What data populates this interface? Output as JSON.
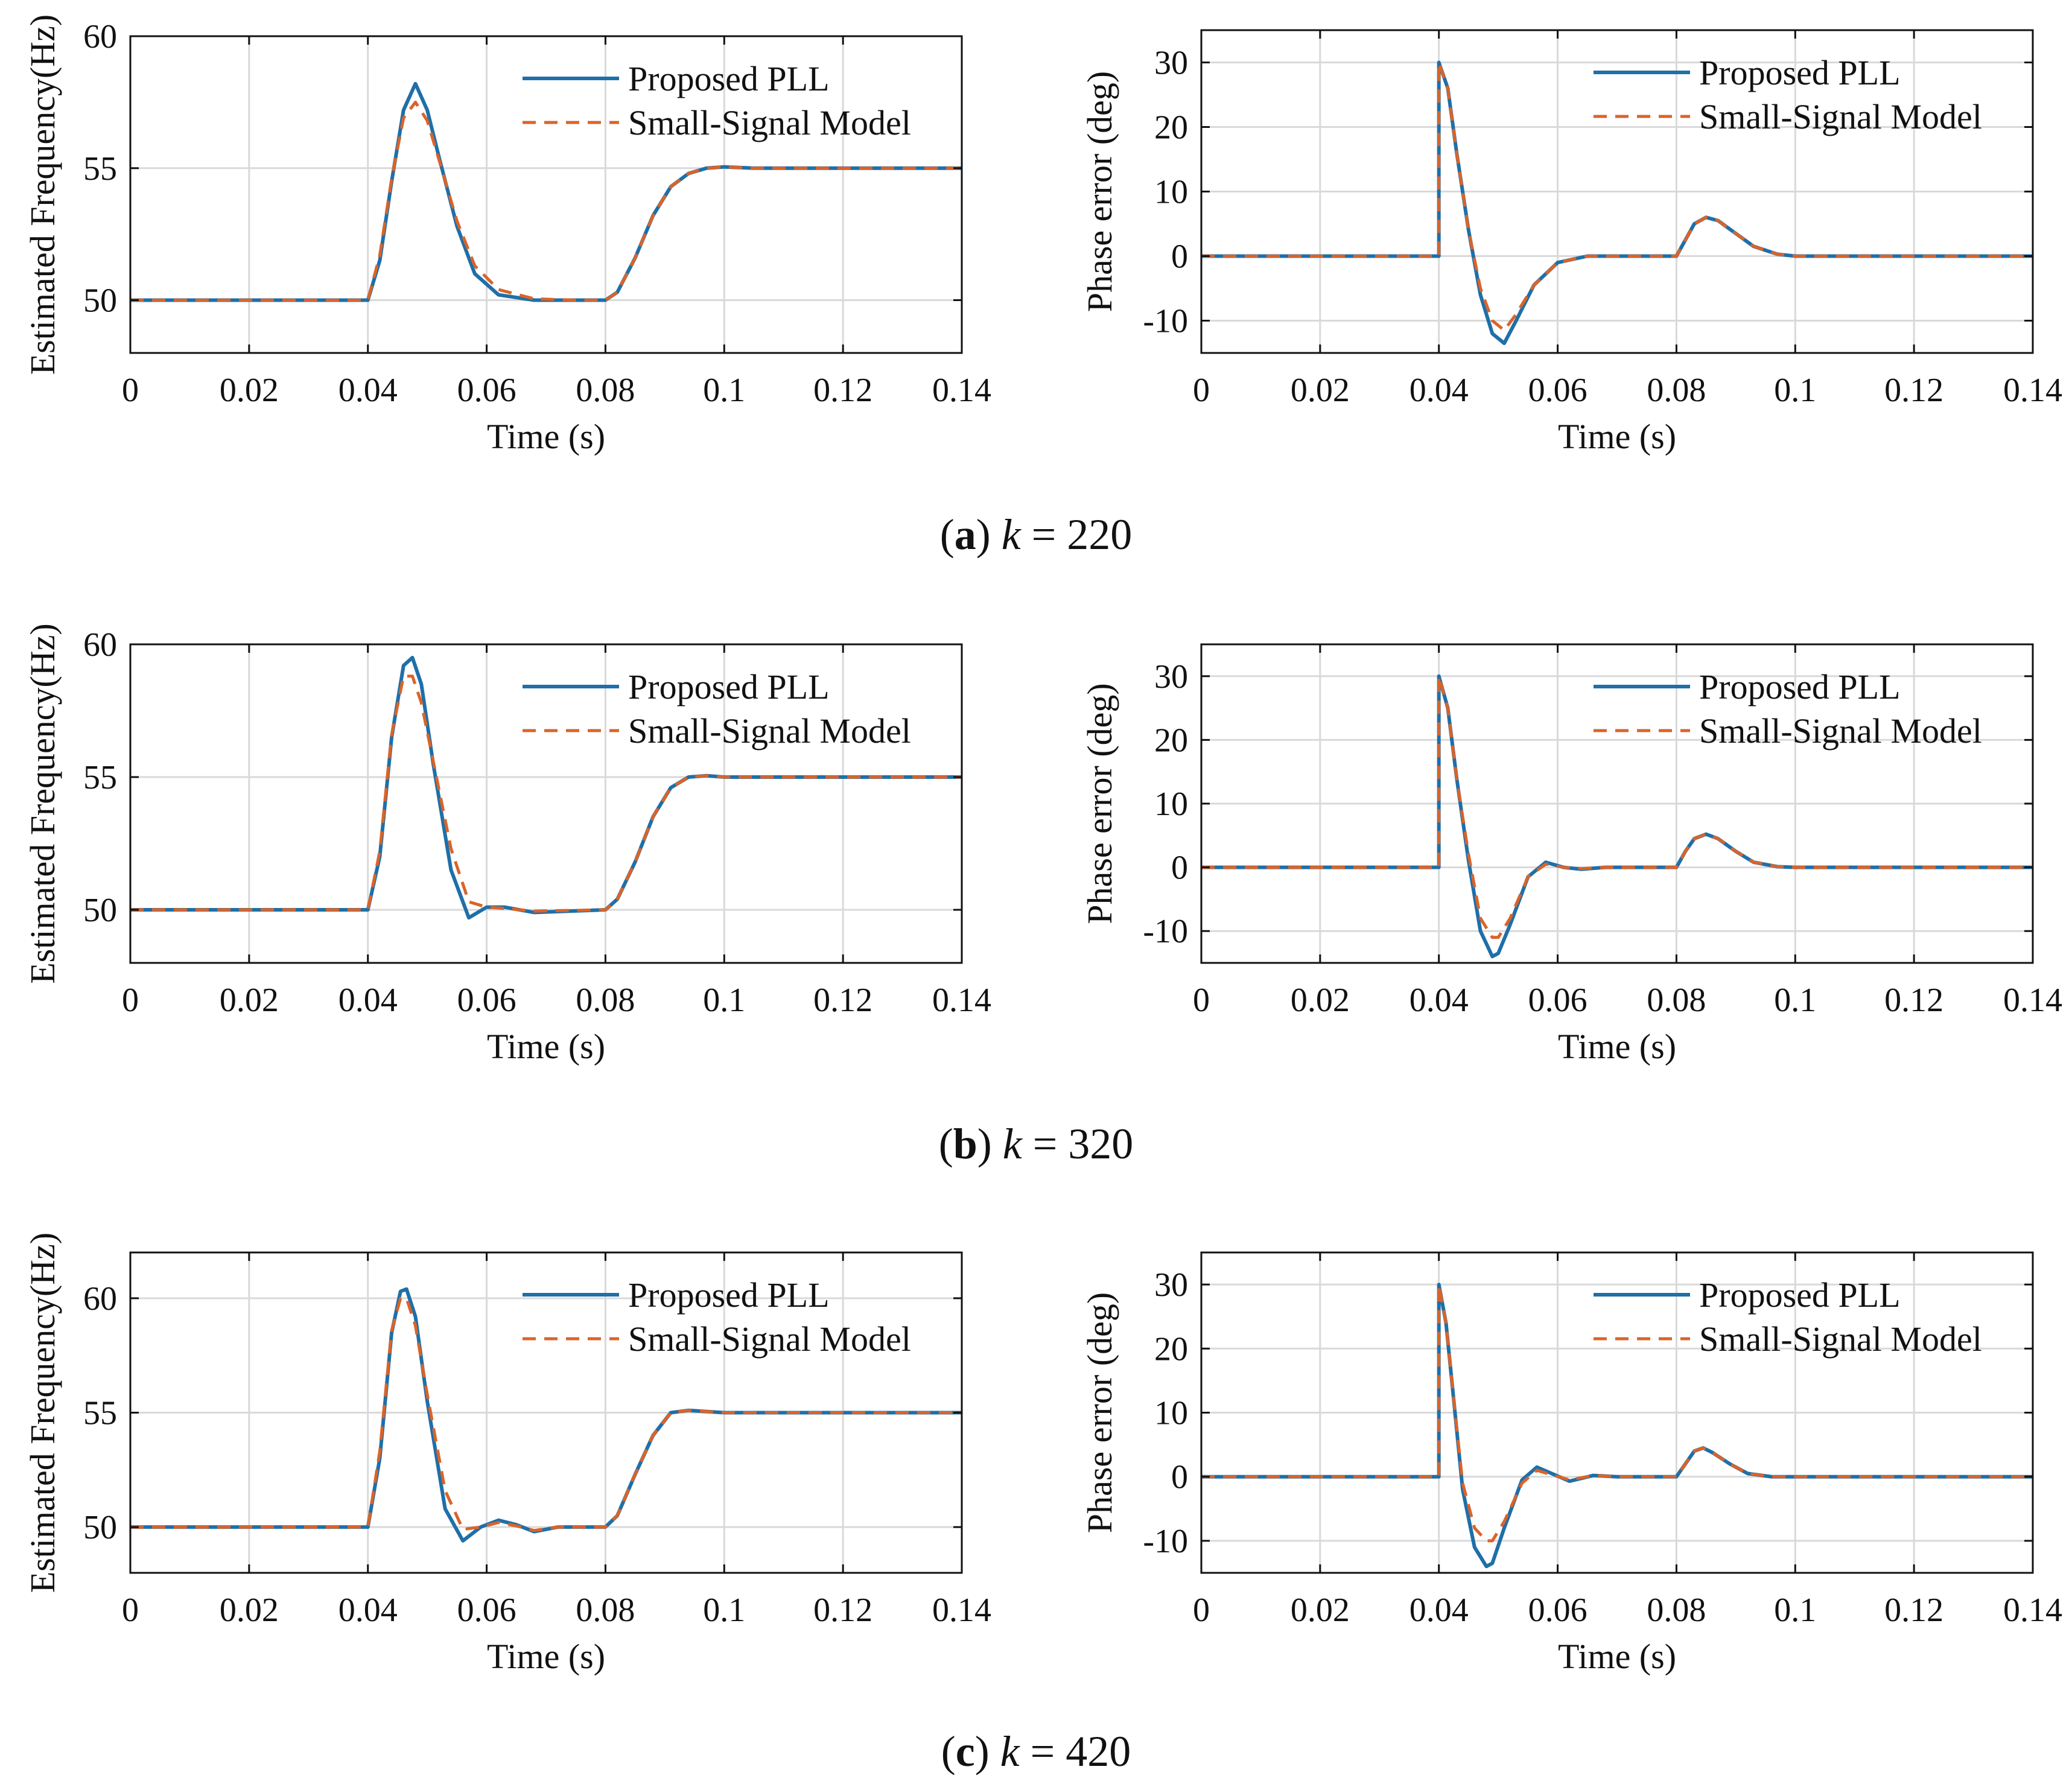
{
  "figure": {
    "captions": [
      {
        "letter": "a",
        "paren_open": "(",
        "paren_close": ")",
        "var": "k",
        "eq": " = ",
        "value": "220"
      },
      {
        "letter": "b",
        "paren_open": "(",
        "paren_close": ")",
        "var": "k",
        "eq": " = ",
        "value": "320"
      },
      {
        "letter": "c",
        "paren_open": "(",
        "paren_close": ")",
        "var": "k",
        "eq": " = ",
        "value": "420"
      }
    ]
  },
  "colors": {
    "pll": "#1f6fa8",
    "model": "#d9642a",
    "axis": "#111111",
    "grid": "#d9d9d9",
    "text": "#111111"
  },
  "chart_data": [
    {
      "type": "line",
      "panel": "a-freq",
      "xlabel": "Time (s)",
      "ylabel": "Estimated Frequency(Hz)",
      "xlim": [
        0,
        0.14
      ],
      "ylim": [
        48,
        60
      ],
      "xticks": [
        0,
        0.02,
        0.04,
        0.06,
        0.08,
        0.1,
        0.12,
        0.14
      ],
      "xtick_labels": [
        "0",
        "0.02",
        "0.04",
        "0.06",
        "0.08",
        "0.1",
        "0.12",
        "0.14"
      ],
      "yticks": [
        50,
        55,
        60
      ],
      "ytick_labels": [
        "50",
        "55",
        "60"
      ],
      "legend": [
        "Proposed PLL",
        "Small-Signal Model"
      ],
      "legend_position": "top-right",
      "series": [
        {
          "name": "Proposed PLL",
          "style": "solid",
          "x": [
            0,
            0.04,
            0.042,
            0.044,
            0.046,
            0.048,
            0.05,
            0.052,
            0.055,
            0.058,
            0.062,
            0.068,
            0.075,
            0.08,
            0.082,
            0.085,
            0.088,
            0.091,
            0.094,
            0.097,
            0.1,
            0.105,
            0.14
          ],
          "y": [
            50,
            50,
            51.5,
            54.5,
            57.2,
            58.2,
            57.2,
            55.4,
            52.8,
            51,
            50.2,
            50,
            50,
            50,
            50.3,
            51.6,
            53.2,
            54.3,
            54.8,
            55,
            55.05,
            55,
            55
          ]
        },
        {
          "name": "Small-Signal Model",
          "style": "dashed",
          "x": [
            0,
            0.04,
            0.042,
            0.044,
            0.046,
            0.048,
            0.05,
            0.052,
            0.055,
            0.058,
            0.062,
            0.068,
            0.075,
            0.08,
            0.082,
            0.085,
            0.088,
            0.091,
            0.094,
            0.097,
            0.1,
            0.105,
            0.14
          ],
          "y": [
            50,
            50,
            51.7,
            54.6,
            56.9,
            57.5,
            56.8,
            55.3,
            53,
            51.3,
            50.4,
            50.05,
            50,
            50,
            50.3,
            51.6,
            53.2,
            54.3,
            54.8,
            55,
            55.05,
            55,
            55
          ]
        }
      ]
    },
    {
      "type": "line",
      "panel": "a-phase",
      "xlabel": "Time (s)",
      "ylabel": "Phase error (deg)",
      "xlim": [
        0,
        0.14
      ],
      "ylim": [
        -15,
        35
      ],
      "xticks": [
        0,
        0.02,
        0.04,
        0.06,
        0.08,
        0.1,
        0.12,
        0.14
      ],
      "xtick_labels": [
        "0",
        "0.02",
        "0.04",
        "0.06",
        "0.08",
        "0.1",
        "0.12",
        "0.14"
      ],
      "yticks": [
        -10,
        0,
        10,
        20,
        30
      ],
      "ytick_labels": [
        "-10",
        "0",
        "10",
        "20",
        "30"
      ],
      "legend": [
        "Proposed PLL",
        "Small-Signal Model"
      ],
      "legend_position": "top-right",
      "series": [
        {
          "name": "Proposed PLL",
          "style": "solid",
          "x": [
            0,
            0.04,
            0.04,
            0.0415,
            0.043,
            0.045,
            0.047,
            0.049,
            0.051,
            0.053,
            0.056,
            0.06,
            0.065,
            0.08,
            0.0815,
            0.083,
            0.085,
            0.087,
            0.09,
            0.093,
            0.097,
            0.1,
            0.14
          ],
          "y": [
            0,
            0,
            30,
            26,
            16,
            4,
            -6,
            -12,
            -13.5,
            -10,
            -4.5,
            -1,
            0,
            0,
            2.5,
            5,
            6,
            5.5,
            3.5,
            1.5,
            0.3,
            0,
            0
          ]
        },
        {
          "name": "Small-Signal Model",
          "style": "dashed",
          "x": [
            0,
            0.04,
            0.04,
            0.0415,
            0.043,
            0.045,
            0.047,
            0.049,
            0.051,
            0.053,
            0.056,
            0.06,
            0.065,
            0.08,
            0.0815,
            0.083,
            0.085,
            0.087,
            0.09,
            0.093,
            0.097,
            0.1,
            0.14
          ],
          "y": [
            0,
            0,
            30,
            26,
            16,
            4,
            -5,
            -10,
            -11.5,
            -9,
            -4.5,
            -1,
            0,
            0,
            2.5,
            5,
            6,
            5.5,
            3.5,
            1.5,
            0.3,
            0,
            0
          ]
        }
      ]
    },
    {
      "type": "line",
      "panel": "b-freq",
      "xlabel": "Time (s)",
      "ylabel": "Estimated Frequency(Hz)",
      "xlim": [
        0,
        0.14
      ],
      "ylim": [
        48,
        60
      ],
      "xticks": [
        0,
        0.02,
        0.04,
        0.06,
        0.08,
        0.1,
        0.12,
        0.14
      ],
      "xtick_labels": [
        "0",
        "0.02",
        "0.04",
        "0.06",
        "0.08",
        "0.1",
        "0.12",
        "0.14"
      ],
      "yticks": [
        50,
        55,
        60
      ],
      "ytick_labels": [
        "50",
        "55",
        "60"
      ],
      "legend": [
        "Proposed PLL",
        "Small-Signal Model"
      ],
      "legend_position": "top-right",
      "series": [
        {
          "name": "Proposed PLL",
          "style": "solid",
          "x": [
            0,
            0.04,
            0.042,
            0.044,
            0.046,
            0.0475,
            0.049,
            0.051,
            0.054,
            0.057,
            0.06,
            0.063,
            0.068,
            0.08,
            0.082,
            0.085,
            0.088,
            0.091,
            0.094,
            0.097,
            0.1,
            0.14
          ],
          "y": [
            50,
            50,
            52,
            56.5,
            59.2,
            59.5,
            58.5,
            55.5,
            51.5,
            49.7,
            50.1,
            50.1,
            49.9,
            50,
            50.4,
            51.8,
            53.5,
            54.6,
            55,
            55.05,
            55,
            55
          ]
        },
        {
          "name": "Small-Signal Model",
          "style": "dashed",
          "x": [
            0,
            0.04,
            0.042,
            0.044,
            0.046,
            0.0475,
            0.049,
            0.051,
            0.054,
            0.057,
            0.06,
            0.063,
            0.068,
            0.08,
            0.082,
            0.085,
            0.088,
            0.091,
            0.094,
            0.097,
            0.1,
            0.14
          ],
          "y": [
            50,
            50,
            52.2,
            56.6,
            58.8,
            58.8,
            57.8,
            55.6,
            52.3,
            50.3,
            50.1,
            50.05,
            49.95,
            50,
            50.4,
            51.8,
            53.5,
            54.6,
            55,
            55.05,
            55,
            55
          ]
        }
      ]
    },
    {
      "type": "line",
      "panel": "b-phase",
      "xlabel": "Time (s)",
      "ylabel": "Phase error (deg)",
      "xlim": [
        0,
        0.14
      ],
      "ylim": [
        -15,
        35
      ],
      "xticks": [
        0,
        0.02,
        0.04,
        0.06,
        0.08,
        0.1,
        0.12,
        0.14
      ],
      "xtick_labels": [
        "0",
        "0.02",
        "0.04",
        "0.06",
        "0.08",
        "0.1",
        "0.12",
        "0.14"
      ],
      "yticks": [
        -10,
        0,
        10,
        20,
        30
      ],
      "ytick_labels": [
        "-10",
        "0",
        "10",
        "20",
        "30"
      ],
      "legend": [
        "Proposed PLL",
        "Small-Signal Model"
      ],
      "legend_position": "top-right",
      "series": [
        {
          "name": "Proposed PLL",
          "style": "solid",
          "x": [
            0,
            0.04,
            0.04,
            0.0415,
            0.043,
            0.045,
            0.047,
            0.049,
            0.05,
            0.052,
            0.055,
            0.058,
            0.061,
            0.064,
            0.068,
            0.08,
            0.0815,
            0.083,
            0.085,
            0.087,
            0.09,
            0.093,
            0.097,
            0.1,
            0.14
          ],
          "y": [
            0,
            0,
            30,
            25,
            14,
            1,
            -10,
            -14,
            -13.5,
            -9,
            -1.5,
            0.8,
            0,
            -0.3,
            0,
            0,
            2.5,
            4.5,
            5.2,
            4.5,
            2.5,
            0.8,
            0.1,
            0,
            0
          ]
        },
        {
          "name": "Small-Signal Model",
          "style": "dashed",
          "x": [
            0,
            0.04,
            0.04,
            0.0415,
            0.043,
            0.045,
            0.047,
            0.049,
            0.05,
            0.052,
            0.055,
            0.058,
            0.061,
            0.064,
            0.068,
            0.08,
            0.0815,
            0.083,
            0.085,
            0.087,
            0.09,
            0.093,
            0.097,
            0.1,
            0.14
          ],
          "y": [
            0,
            0,
            30,
            25,
            14,
            2,
            -8,
            -11,
            -11,
            -8,
            -1.5,
            0.5,
            0,
            -0.2,
            0,
            0,
            2.5,
            4.5,
            5.2,
            4.5,
            2.5,
            0.8,
            0.1,
            0,
            0
          ]
        }
      ]
    },
    {
      "type": "line",
      "panel": "c-freq",
      "xlabel": "Time (s)",
      "ylabel": "Estimated Frequency(Hz)",
      "xlim": [
        0,
        0.14
      ],
      "ylim": [
        48,
        62
      ],
      "xticks": [
        0,
        0.02,
        0.04,
        0.06,
        0.08,
        0.1,
        0.12,
        0.14
      ],
      "xtick_labels": [
        "0",
        "0.02",
        "0.04",
        "0.06",
        "0.08",
        "0.1",
        "0.12",
        "0.14"
      ],
      "yticks": [
        50,
        55,
        60
      ],
      "ytick_labels": [
        "50",
        "55",
        "60"
      ],
      "legend": [
        "Proposed PLL",
        "Small-Signal Model"
      ],
      "legend_position": "top-right",
      "series": [
        {
          "name": "Proposed PLL",
          "style": "solid",
          "x": [
            0,
            0.04,
            0.042,
            0.044,
            0.0455,
            0.0465,
            0.048,
            0.05,
            0.053,
            0.056,
            0.059,
            0.062,
            0.065,
            0.068,
            0.072,
            0.08,
            0.082,
            0.085,
            0.088,
            0.091,
            0.094,
            0.097,
            0.1,
            0.14
          ],
          "y": [
            50,
            50,
            53,
            58.5,
            60.3,
            60.4,
            59.2,
            55.5,
            50.8,
            49.4,
            50,
            50.3,
            50.1,
            49.8,
            50,
            50,
            50.5,
            52.3,
            54,
            55,
            55.1,
            55.05,
            55,
            55
          ]
        },
        {
          "name": "Small-Signal Model",
          "style": "dashed",
          "x": [
            0,
            0.04,
            0.042,
            0.044,
            0.0455,
            0.0465,
            0.048,
            0.05,
            0.053,
            0.056,
            0.059,
            0.062,
            0.065,
            0.068,
            0.072,
            0.08,
            0.082,
            0.085,
            0.088,
            0.091,
            0.094,
            0.097,
            0.1,
            0.14
          ],
          "y": [
            50,
            50,
            53.3,
            58.6,
            60,
            60,
            58.8,
            55.8,
            51.6,
            49.9,
            50,
            50.2,
            50.05,
            49.85,
            50,
            50,
            50.5,
            52.3,
            54,
            55,
            55.1,
            55.05,
            55,
            55
          ]
        }
      ]
    },
    {
      "type": "line",
      "panel": "c-phase",
      "xlabel": "Time (s)",
      "ylabel": "Phase error (deg)",
      "xlim": [
        0,
        0.14
      ],
      "ylim": [
        -15,
        35
      ],
      "xticks": [
        0,
        0.02,
        0.04,
        0.06,
        0.08,
        0.1,
        0.12,
        0.14
      ],
      "xtick_labels": [
        "0",
        "0.02",
        "0.04",
        "0.06",
        "0.08",
        "0.1",
        "0.12",
        "0.14"
      ],
      "yticks": [
        -10,
        0,
        10,
        20,
        30
      ],
      "ytick_labels": [
        "-10",
        "0",
        "10",
        "20",
        "30"
      ],
      "legend": [
        "Proposed PLL",
        "Small-Signal Model"
      ],
      "legend_position": "top-right",
      "series": [
        {
          "name": "Proposed PLL",
          "style": "solid",
          "x": [
            0,
            0.04,
            0.04,
            0.0412,
            0.0425,
            0.044,
            0.046,
            0.048,
            0.049,
            0.051,
            0.054,
            0.0565,
            0.059,
            0.062,
            0.066,
            0.07,
            0.08,
            0.0815,
            0.083,
            0.0845,
            0.086,
            0.089,
            0.092,
            0.096,
            0.1,
            0.14
          ],
          "y": [
            0,
            0,
            30,
            24,
            12,
            -2,
            -11,
            -14,
            -13.5,
            -8,
            -0.5,
            1.5,
            0.5,
            -0.7,
            0.2,
            0,
            0,
            2,
            4,
            4.5,
            3.8,
            2,
            0.5,
            0,
            0,
            0
          ]
        },
        {
          "name": "Small-Signal Model",
          "style": "dashed",
          "x": [
            0,
            0.04,
            0.04,
            0.0412,
            0.0425,
            0.044,
            0.046,
            0.048,
            0.049,
            0.051,
            0.054,
            0.0565,
            0.059,
            0.062,
            0.066,
            0.07,
            0.08,
            0.0815,
            0.083,
            0.0845,
            0.086,
            0.089,
            0.092,
            0.096,
            0.1,
            0.14
          ],
          "y": [
            0,
            0,
            30,
            24,
            12,
            -1,
            -8,
            -10,
            -10,
            -7,
            -1,
            1,
            0.3,
            -0.5,
            0.2,
            0,
            0,
            2,
            4,
            4.5,
            3.8,
            2,
            0.5,
            0,
            0,
            0
          ]
        }
      ]
    }
  ]
}
